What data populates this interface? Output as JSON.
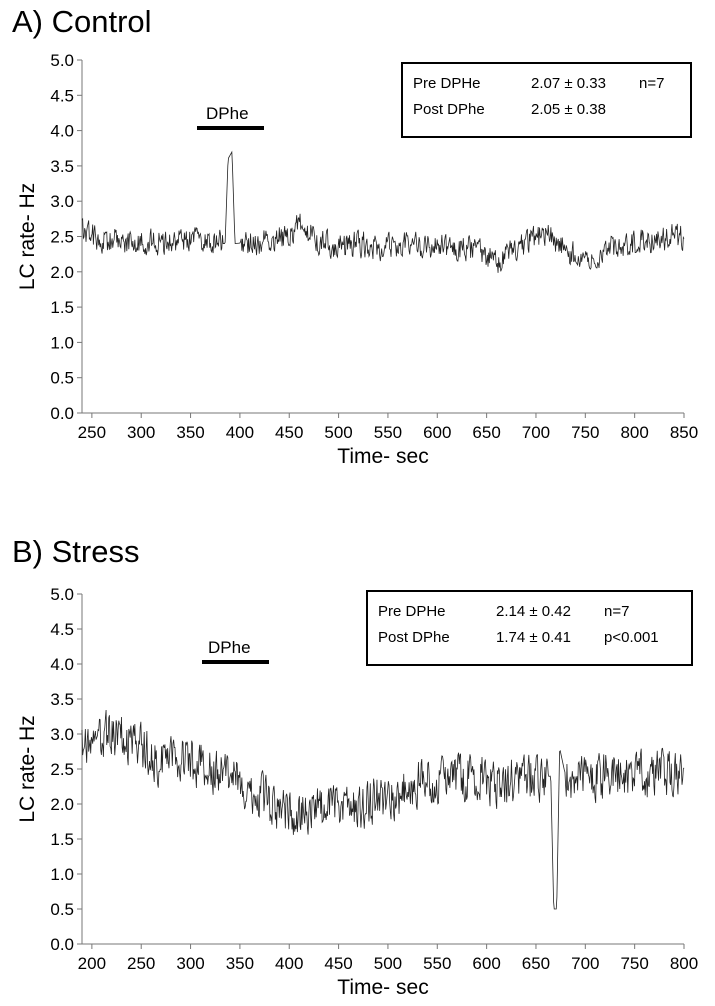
{
  "chart_data": [
    {
      "type": "line",
      "panel_title": "A) Control",
      "xlabel": "Time- sec",
      "ylabel": "LC rate- Hz",
      "xlim": [
        240,
        850
      ],
      "ylim": [
        0,
        5.0
      ],
      "x_ticks": [
        "250",
        "300",
        "350",
        "400",
        "450",
        "500",
        "550",
        "600",
        "650",
        "700",
        "750",
        "800",
        "850"
      ],
      "y_ticks": [
        "0.0",
        "0.5",
        "1.0",
        "1.5",
        "2.0",
        "2.5",
        "3.0",
        "3.5",
        "4.0",
        "4.5",
        "5.0"
      ],
      "drug": {
        "label": "DPhe",
        "start": 360,
        "end": 425
      },
      "stats": [
        {
          "label": "Pre DPHe",
          "value": "2.07 ± 0.33",
          "extra": "n=7"
        },
        {
          "label": "Post DPhe",
          "value": "2.05 ± 0.38",
          "extra": ""
        }
      ],
      "trace": {
        "points": [
          [
            240,
            2.6
          ],
          [
            260,
            2.4
          ],
          [
            280,
            2.45
          ],
          [
            300,
            2.4
          ],
          [
            320,
            2.42
          ],
          [
            340,
            2.45
          ],
          [
            360,
            2.45
          ],
          [
            375,
            2.4
          ],
          [
            385,
            2.4
          ],
          [
            388,
            3.6
          ],
          [
            392,
            3.7
          ],
          [
            395,
            2.4
          ],
          [
            410,
            2.42
          ],
          [
            430,
            2.45
          ],
          [
            450,
            2.5
          ],
          [
            460,
            2.7
          ],
          [
            480,
            2.4
          ],
          [
            500,
            2.35
          ],
          [
            520,
            2.4
          ],
          [
            540,
            2.35
          ],
          [
            560,
            2.4
          ],
          [
            580,
            2.35
          ],
          [
            600,
            2.35
          ],
          [
            620,
            2.32
          ],
          [
            640,
            2.3
          ],
          [
            660,
            2.15
          ],
          [
            680,
            2.3
          ],
          [
            700,
            2.5
          ],
          [
            715,
            2.55
          ],
          [
            730,
            2.3
          ],
          [
            750,
            2.2
          ],
          [
            780,
            2.35
          ],
          [
            800,
            2.4
          ],
          [
            820,
            2.45
          ],
          [
            840,
            2.5
          ],
          [
            850,
            2.45
          ]
        ],
        "noise": 0.12
      }
    },
    {
      "type": "line",
      "panel_title": "B) Stress",
      "xlabel": "Time- sec",
      "ylabel": "LC rate- Hz",
      "xlim": [
        190,
        800
      ],
      "ylim": [
        0,
        5.0
      ],
      "x_ticks": [
        "200",
        "250",
        "300",
        "350",
        "400",
        "450",
        "500",
        "550",
        "600",
        "650",
        "700",
        "750",
        "800"
      ],
      "y_ticks": [
        "0.0",
        "0.5",
        "1.0",
        "1.5",
        "2.0",
        "2.5",
        "3.0",
        "3.5",
        "4.0",
        "4.5",
        "5.0"
      ],
      "drug": {
        "label": "DPhe",
        "start": 308,
        "end": 372
      },
      "stats": [
        {
          "label": "Pre DPHe",
          "value": "2.14 ± 0.42",
          "extra": "n=7"
        },
        {
          "label": "Post DPhe",
          "value": "1.74 ± 0.41",
          "extra": "p<0.001"
        }
      ],
      "trace": {
        "points": [
          [
            190,
            2.9
          ],
          [
            210,
            2.95
          ],
          [
            230,
            3.0
          ],
          [
            250,
            2.8
          ],
          [
            270,
            2.6
          ],
          [
            290,
            2.6
          ],
          [
            310,
            2.55
          ],
          [
            330,
            2.45
          ],
          [
            350,
            2.3
          ],
          [
            370,
            2.1
          ],
          [
            390,
            1.9
          ],
          [
            410,
            1.85
          ],
          [
            430,
            1.9
          ],
          [
            450,
            1.95
          ],
          [
            470,
            1.95
          ],
          [
            490,
            2.05
          ],
          [
            510,
            2.15
          ],
          [
            530,
            2.3
          ],
          [
            550,
            2.35
          ],
          [
            570,
            2.4
          ],
          [
            590,
            2.4
          ],
          [
            610,
            2.3
          ],
          [
            630,
            2.35
          ],
          [
            650,
            2.35
          ],
          [
            665,
            2.4
          ],
          [
            668,
            0.5
          ],
          [
            671,
            0.5
          ],
          [
            674,
            2.8
          ],
          [
            680,
            2.4
          ],
          [
            700,
            2.35
          ],
          [
            720,
            2.4
          ],
          [
            740,
            2.4
          ],
          [
            760,
            2.4
          ],
          [
            780,
            2.45
          ],
          [
            800,
            2.5
          ]
        ],
        "noise": 0.22
      }
    }
  ]
}
